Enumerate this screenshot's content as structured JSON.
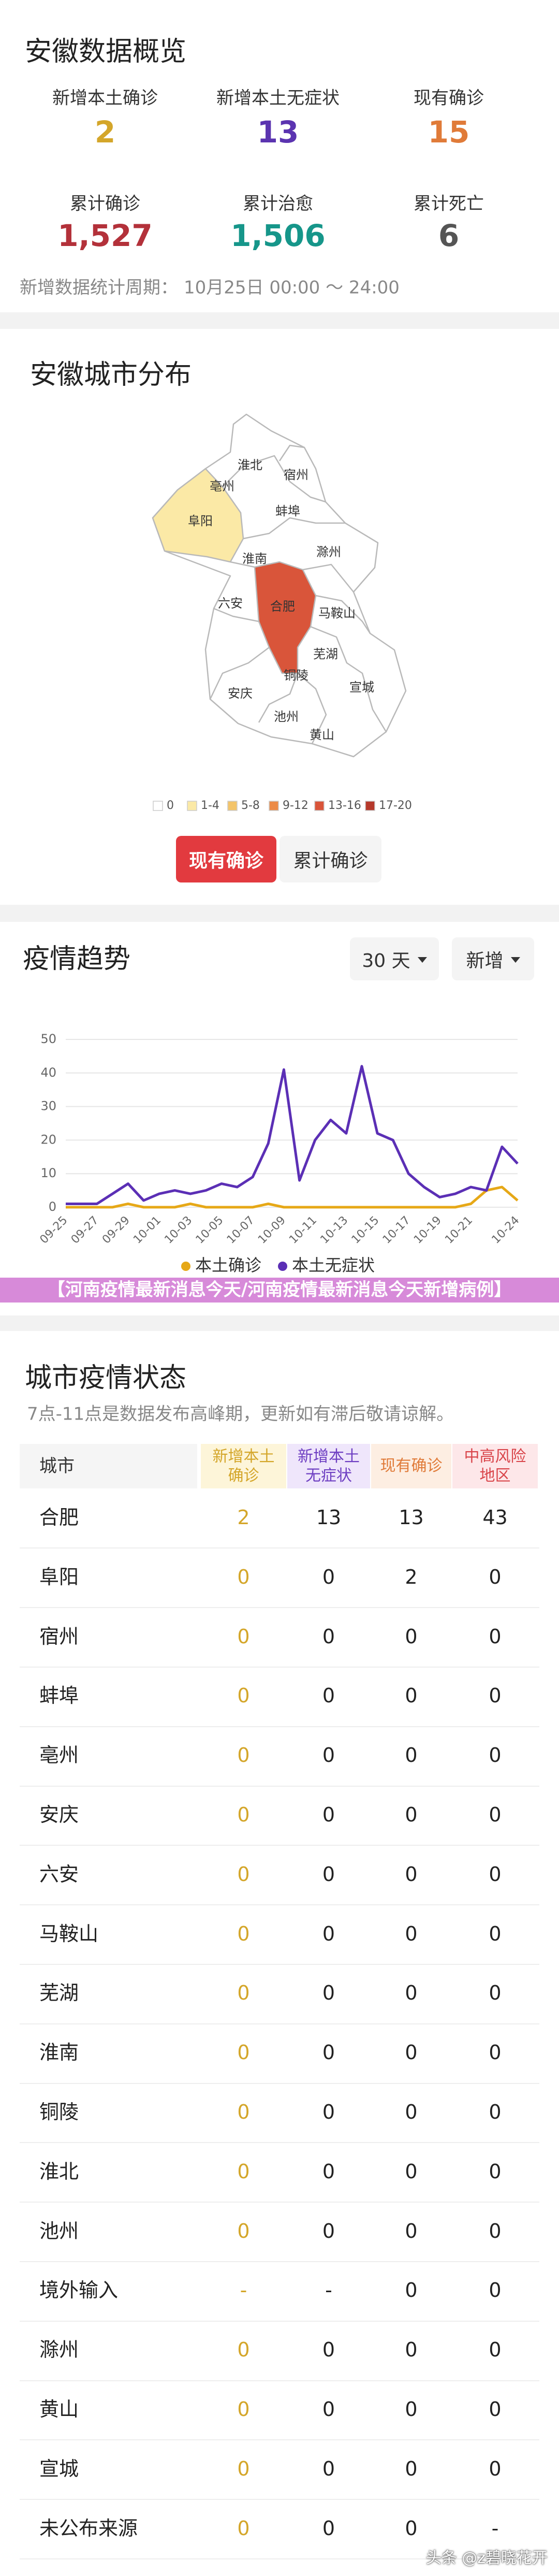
{
  "overview": {
    "title": "安徽数据概览",
    "stats": [
      {
        "label": "新增本土确诊",
        "value": "2",
        "color": "#d4a62a"
      },
      {
        "label": "新增本土无症状",
        "value": "13",
        "color": "#5b34b0"
      },
      {
        "label": "现有确诊",
        "value": "15",
        "color": "#e07b39"
      },
      {
        "label": "累计确诊",
        "value": "1,527",
        "color": "#b3313a"
      },
      {
        "label": "累计治愈",
        "value": "1,506",
        "color": "#16968a"
      },
      {
        "label": "累计死亡",
        "value": "6",
        "color": "#555555"
      }
    ],
    "period_label": "新增数据统计周期：",
    "period": "10月25日 00:00 ～ 24:00"
  },
  "distribution": {
    "title": "安徽城市分布",
    "cities": [
      "淮北",
      "亳州",
      "宿州",
      "阜阳",
      "蚌埠",
      "淮南",
      "滁州",
      "六安",
      "合肥",
      "马鞍山",
      "芜湖",
      "铜陵",
      "宣城",
      "安庆",
      "池州",
      "黄山"
    ],
    "legend": [
      {
        "label": "0",
        "color": "#ffffff"
      },
      {
        "label": "1-4",
        "color": "#fbe9a6"
      },
      {
        "label": "5-8",
        "color": "#f3c46a"
      },
      {
        "label": "9-12",
        "color": "#ec8b47"
      },
      {
        "label": "13-16",
        "color": "#d9553a"
      },
      {
        "label": "17-20",
        "color": "#b5392b"
      }
    ],
    "tabs": [
      "现有确诊",
      "累计确诊"
    ]
  },
  "trend_controls": [
    "30 天",
    "新增"
  ],
  "chart_data": {
    "type": "line",
    "title": "疫情趋势",
    "x": [
      "09-25",
      null,
      "09-27",
      null,
      "09-29",
      null,
      "10-01",
      null,
      "10-03",
      null,
      "10-05",
      null,
      "10-07",
      null,
      "10-09",
      null,
      "10-11",
      null,
      "10-13",
      null,
      "10-15",
      null,
      "10-17",
      null,
      "10-19",
      null,
      "10-21",
      null,
      null,
      "10-24"
    ],
    "series": [
      {
        "name": "本土确诊",
        "color": "#e6a817",
        "values": [
          0,
          0,
          0,
          0,
          1,
          0,
          0,
          0,
          1,
          0,
          0,
          0,
          0,
          1,
          0,
          0,
          0,
          0,
          0,
          0,
          0,
          0,
          0,
          0,
          0,
          0,
          1,
          5,
          6,
          2
        ]
      },
      {
        "name": "本土无症状",
        "color": "#5b2fb5",
        "values": [
          1,
          1,
          1,
          4,
          7,
          2,
          4,
          5,
          4,
          5,
          7,
          6,
          9,
          19,
          41,
          8,
          20,
          26,
          22,
          42,
          22,
          20,
          10,
          6,
          3,
          4,
          6,
          5,
          18,
          13
        ]
      }
    ],
    "ylim": [
      0,
      50
    ],
    "yticks": [
      0,
      10,
      20,
      30,
      40,
      50
    ],
    "grid": true
  },
  "banner": "【河南疫情最新消息今天/河南疫情最新消息今天新增病例】",
  "city_status": {
    "title": "城市疫情状态",
    "subtitle": "7点-11点是数据发布高峰期，更新如有滞后敬请谅解。",
    "header": [
      "城市",
      "新增本土确诊",
      "新增本土无症状",
      "现有确诊",
      "中高风险地区"
    ],
    "rows": [
      [
        "合肥",
        "2",
        "13",
        "13",
        "43"
      ],
      [
        "阜阳",
        "0",
        "0",
        "2",
        "0"
      ],
      [
        "宿州",
        "0",
        "0",
        "0",
        "0"
      ],
      [
        "蚌埠",
        "0",
        "0",
        "0",
        "0"
      ],
      [
        "亳州",
        "0",
        "0",
        "0",
        "0"
      ],
      [
        "安庆",
        "0",
        "0",
        "0",
        "0"
      ],
      [
        "六安",
        "0",
        "0",
        "0",
        "0"
      ],
      [
        "马鞍山",
        "0",
        "0",
        "0",
        "0"
      ],
      [
        "芜湖",
        "0",
        "0",
        "0",
        "0"
      ],
      [
        "淮南",
        "0",
        "0",
        "0",
        "0"
      ],
      [
        "铜陵",
        "0",
        "0",
        "0",
        "0"
      ],
      [
        "淮北",
        "0",
        "0",
        "0",
        "0"
      ],
      [
        "池州",
        "0",
        "0",
        "0",
        "0"
      ],
      [
        "境外输入",
        "-",
        "-",
        "0",
        "0"
      ],
      [
        "滁州",
        "0",
        "0",
        "0",
        "0"
      ],
      [
        "黄山",
        "0",
        "0",
        "0",
        "0"
      ],
      [
        "宣城",
        "0",
        "0",
        "0",
        "0"
      ],
      [
        "未公布来源",
        "0",
        "0",
        "0",
        "-"
      ]
    ]
  },
  "watermark": "头条 @z碧晓花开"
}
